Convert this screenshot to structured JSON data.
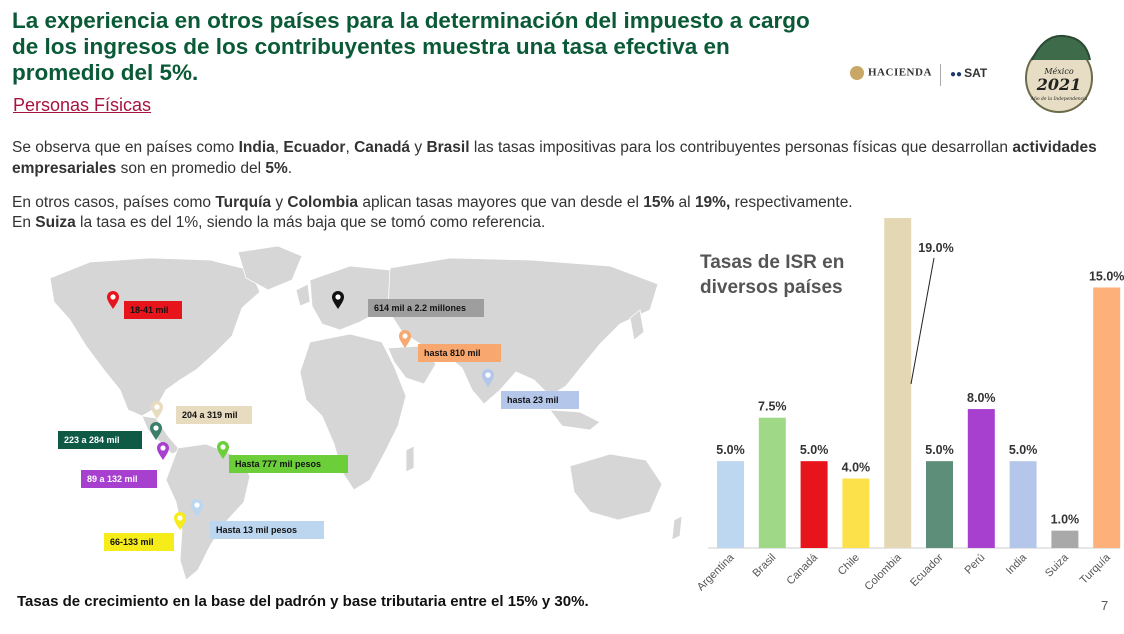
{
  "header": {
    "title": "La experiencia en otros países para la determinación del impuesto a cargo de los ingresos de los contribuyentes muestra una tasa efectiva en promedio del 5%.",
    "subtitle": "Personas Físicas"
  },
  "logos": {
    "hacienda": "HACIENDA",
    "sat": "SAT",
    "emblem_line1": "México",
    "emblem_line2": "2021",
    "emblem_line3": "Año de la Independencia"
  },
  "body": {
    "p1": [
      {
        "t": "Se observa que en países como ",
        "b": false
      },
      {
        "t": "India",
        "b": true
      },
      {
        "t": ", ",
        "b": false
      },
      {
        "t": "Ecuador",
        "b": true
      },
      {
        "t": ", ",
        "b": false
      },
      {
        "t": "Canadá",
        "b": true
      },
      {
        "t": " y ",
        "b": false
      },
      {
        "t": "Brasil",
        "b": true
      },
      {
        "t": " las tasas impositivas para los contribuyentes personas físicas que desarrollan ",
        "b": false
      },
      {
        "t": "actividades empresariales",
        "b": true
      },
      {
        "t": " son en promedio del ",
        "b": false
      },
      {
        "t": "5%",
        "b": true
      },
      {
        "t": ".",
        "b": false
      }
    ],
    "p2": [
      {
        "t": "En otros casos, países como ",
        "b": false
      },
      {
        "t": "Turquía",
        "b": true
      },
      {
        "t": " y ",
        "b": false
      },
      {
        "t": "Colombia",
        "b": true
      },
      {
        "t": " aplican tasas mayores que van desde el ",
        "b": false
      },
      {
        "t": "15%",
        "b": true
      },
      {
        "t": " al ",
        "b": false
      },
      {
        "t": "19%,",
        "b": true
      },
      {
        "t": " respectivamente.",
        "b": false
      }
    ],
    "p3": [
      {
        "t": "En ",
        "b": false
      },
      {
        "t": "Suiza",
        "b": true
      },
      {
        "t": " la tasa es del 1%, siendo la más baja que se tomó como referencia.",
        "b": false
      }
    ]
  },
  "map": {
    "labels": [
      {
        "text": "18-41 mil",
        "bg": "#e8141b",
        "fg": "#111111",
        "pin": "#e8141b"
      },
      {
        "text": "614 mil a 2.2 millones",
        "bg": "#9e9e9e",
        "fg": "#111111",
        "pin": "#111111"
      },
      {
        "text": "hasta 810 mil",
        "bg": "#f8a86f",
        "fg": "#111111",
        "pin": "#f8a86f"
      },
      {
        "text": "hasta 23 mil",
        "bg": "#b4c7ea",
        "fg": "#111111",
        "pin": "#b4c7ea"
      },
      {
        "text": "204 a 319 mil",
        "bg": "#e8dcc0",
        "fg": "#111111",
        "pin": "#e8dcc0"
      },
      {
        "text": "223 a 284 mil",
        "bg": "#0e5a45",
        "fg": "#ffffff",
        "pin": "#3b7f6b"
      },
      {
        "text": "89 a 132 mil",
        "bg": "#a73fcf",
        "fg": "#ffffff",
        "pin": "#a73fcf"
      },
      {
        "text": "Hasta 777 mil pesos",
        "bg": "#6ccf3a",
        "fg": "#111111",
        "pin": "#6ccf3a"
      },
      {
        "text": "Hasta 13 mil pesos",
        "bg": "#bcd6f0",
        "fg": "#111111",
        "pin": "#bcd6f0"
      },
      {
        "text": "66-133 mil",
        "bg": "#f6ec1a",
        "fg": "#111111",
        "pin": "#f6ec1a"
      }
    ]
  },
  "footer": {
    "text": "Tasas de crecimiento en la base del padrón y base tributaria entre el 15% y 30%.",
    "page": "7"
  },
  "chart_data": {
    "type": "bar",
    "title": "Tasas de ISR en diversos países",
    "categories": [
      "Argentina",
      "Brasil",
      "Canadá",
      "Chile",
      "Colombia",
      "Ecuador",
      "Perú",
      "India",
      "Suiza",
      "Turquía"
    ],
    "values": [
      5.0,
      7.5,
      5.0,
      4.0,
      19.0,
      5.0,
      8.0,
      5.0,
      1.0,
      15.0
    ],
    "value_labels": [
      "5.0%",
      "7.5%",
      "5.0%",
      "4.0%",
      "19.0%",
      "5.0%",
      "8.0%",
      "5.0%",
      "1.0%",
      "15.0%"
    ],
    "colors": [
      "#bcd7ef",
      "#9fd987",
      "#e8141b",
      "#fde14a",
      "#e4d8b4",
      "#5c8e7a",
      "#a73fcf",
      "#b4c7ea",
      "#a9a9a9",
      "#fdb07a"
    ],
    "xlabel": "",
    "ylabel": "",
    "ylim": [
      0,
      19
    ],
    "grid": false,
    "legend": "none"
  }
}
